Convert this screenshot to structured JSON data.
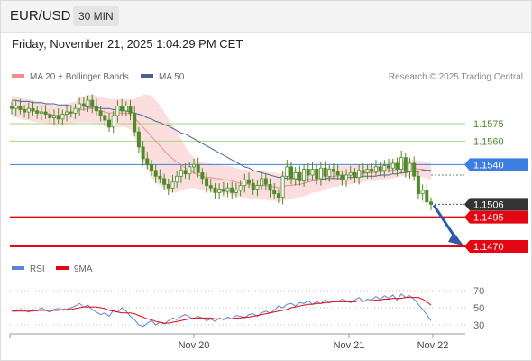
{
  "header": {
    "symbol": "EUR/USD",
    "timeframe": "30 MIN"
  },
  "datetime": "Friday, November 21, 2025 1:04:29 PM CET",
  "legend": {
    "bollinger_label": "MA 20 + Bollinger Bands",
    "ma50_label": "MA 50",
    "rsi_label": "RSI",
    "rsi_ma_label": "9MA"
  },
  "source_text": "Research © 2025 Trading Central",
  "colors": {
    "bollinger": "#f08c8c",
    "bollinger_band_fill": "#fcdede",
    "ma50": "#4a6490",
    "candle": "#4f8a2b",
    "resistance": "#a9d57f",
    "pivot": "#3d7fe0",
    "support": "#e30613",
    "price_tag": "#333333",
    "arrow": "#2e5aa8",
    "rsi": "#5a86d6",
    "rsi_ma": "#e30613"
  },
  "chart_data": [
    {
      "type": "candlestick",
      "title": "EUR/USD 30 MIN",
      "x_ticks": [
        "Nov 20",
        "Nov 21",
        "Nov 22"
      ],
      "price_levels": [
        {
          "label": "1.1575",
          "value": 1.1575,
          "kind": "resistance"
        },
        {
          "label": "1.1560",
          "value": 1.156,
          "kind": "resistance"
        },
        {
          "label": "1.1540",
          "value": 1.154,
          "kind": "pivot"
        },
        {
          "label": "1.1506",
          "value": 1.1506,
          "kind": "last"
        },
        {
          "label": "1.1495",
          "value": 1.1495,
          "kind": "support"
        },
        {
          "label": "1.1470",
          "value": 1.147,
          "kind": "support"
        }
      ],
      "ylim": [
        1.1453,
        1.1622
      ],
      "close": [
        1.1588,
        1.159,
        1.1587,
        1.1585,
        1.1588,
        1.1586,
        1.1584,
        1.1585,
        1.1583,
        1.158,
        1.1582,
        1.1579,
        1.1583,
        1.1585,
        1.1584,
        1.1588,
        1.1592,
        1.159,
        1.1595,
        1.159,
        1.1586,
        1.1582,
        1.1578,
        1.1572,
        1.1582,
        1.159,
        1.1586,
        1.159,
        1.1584,
        1.1568,
        1.1555,
        1.1545,
        1.154,
        1.1535,
        1.153,
        1.1528,
        1.1523,
        1.152,
        1.1525,
        1.153,
        1.1535,
        1.1532,
        1.1538,
        1.154,
        1.1533,
        1.1528,
        1.1522,
        1.152,
        1.1516,
        1.1519,
        1.1517,
        1.152,
        1.1516,
        1.1518,
        1.1522,
        1.1527,
        1.1524,
        1.1519,
        1.1522,
        1.1528,
        1.1523,
        1.1518,
        1.1515,
        1.1512,
        1.153,
        1.1538,
        1.1528,
        1.1533,
        1.1526,
        1.1536,
        1.1531,
        1.1536,
        1.1528,
        1.1537,
        1.153,
        1.1536,
        1.1534,
        1.1531,
        1.1527,
        1.1531,
        1.1533,
        1.1529,
        1.1535,
        1.1533,
        1.1536,
        1.1534,
        1.1538,
        1.1535,
        1.1539,
        1.1537,
        1.1541,
        1.1536,
        1.1546,
        1.1534,
        1.1541,
        1.153,
        1.1515,
        1.1518,
        1.1508,
        1.1506
      ],
      "ma20": [
        1.159,
        1.1589,
        1.1588,
        1.1587,
        1.1587,
        1.1586,
        1.1585,
        1.1585,
        1.1584,
        1.1583,
        1.1582,
        1.1582,
        1.1582,
        1.1583,
        1.1584,
        1.1585,
        1.1587,
        1.1587,
        1.1588,
        1.1588,
        1.1587,
        1.1586,
        1.1585,
        1.1584,
        1.1584,
        1.1584,
        1.1584,
        1.1584,
        1.1583,
        1.158,
        1.1576,
        1.1572,
        1.1568,
        1.1564,
        1.156,
        1.1556,
        1.1552,
        1.1548,
        1.1545,
        1.1542,
        1.154,
        1.1537,
        1.1535,
        1.1533,
        1.1531,
        1.153,
        1.1529,
        1.1529,
        1.1528,
        1.1528,
        1.1527,
        1.1527,
        1.1526,
        1.1525,
        1.1524,
        1.1524,
        1.1523,
        1.1522,
        1.1522,
        1.1522,
        1.1522,
        1.1521,
        1.1521,
        1.152,
        1.1521,
        1.1522,
        1.1522,
        1.1523,
        1.1523,
        1.1524,
        1.1525,
        1.1526,
        1.1526,
        1.1527,
        1.1528,
        1.1529,
        1.153,
        1.153,
        1.1531,
        1.1531,
        1.1531,
        1.1532,
        1.1532,
        1.1532,
        1.1533,
        1.1533,
        1.1533,
        1.1534,
        1.1534,
        1.1535,
        1.1535,
        1.1536,
        1.1537,
        1.1537,
        1.1537,
        1.1537,
        1.1536,
        1.1536,
        1.1535,
        1.1534
      ],
      "ma50": [
        1.1595,
        1.1595,
        1.1594,
        1.1594,
        1.1594,
        1.1593,
        1.1593,
        1.1593,
        1.1592,
        1.1592,
        1.1592,
        1.1591,
        1.1591,
        1.1591,
        1.159,
        1.159,
        1.159,
        1.159,
        1.1589,
        1.1589,
        1.1589,
        1.1588,
        1.1588,
        1.1588,
        1.1587,
        1.1587,
        1.1586,
        1.1586,
        1.1585,
        1.1584,
        1.1583,
        1.1582,
        1.158,
        1.1579,
        1.1577,
        1.1576,
        1.1574,
        1.1573,
        1.1571,
        1.1569,
        1.1567,
        1.1566,
        1.1564,
        1.1562,
        1.156,
        1.1558,
        1.1556,
        1.1554,
        1.1552,
        1.155,
        1.1548,
        1.1546,
        1.1544,
        1.1542,
        1.154,
        1.1538,
        1.1537,
        1.1535,
        1.1534,
        1.1533,
        1.1532,
        1.1531,
        1.153,
        1.1529,
        1.1529,
        1.1528,
        1.1528,
        1.1528,
        1.1527,
        1.1527,
        1.1527,
        1.1527,
        1.1527,
        1.1527,
        1.1528,
        1.1528,
        1.1528,
        1.1528,
        1.1528,
        1.1529,
        1.1529,
        1.1529,
        1.1529,
        1.153,
        1.153,
        1.153,
        1.153,
        1.1531,
        1.1531,
        1.1531,
        1.1532,
        1.1532,
        1.1533,
        1.1533,
        1.1534,
        1.1534,
        1.1534,
        1.1535,
        1.1535,
        1.1535
      ],
      "bb_width": [
        0.0009,
        0.0009,
        0.0009,
        0.0009,
        0.0009,
        0.0009,
        0.0009,
        0.0009,
        0.0009,
        0.0009,
        0.0009,
        0.0009,
        0.0009,
        0.0009,
        0.0009,
        0.0009,
        0.0011,
        0.0011,
        0.0012,
        0.0012,
        0.0012,
        0.0012,
        0.0012,
        0.0012,
        0.0012,
        0.0012,
        0.0012,
        0.0012,
        0.0013,
        0.0016,
        0.0022,
        0.0028,
        0.0032,
        0.0035,
        0.0035,
        0.0034,
        0.0033,
        0.0031,
        0.0029,
        0.0026,
        0.0022,
        0.0018,
        0.0015,
        0.0013,
        0.0012,
        0.0012,
        0.0012,
        0.0012,
        0.0012,
        0.0012,
        0.0012,
        0.0012,
        0.0012,
        0.0012,
        0.0012,
        0.0012,
        0.0012,
        0.0012,
        0.0012,
        0.0012,
        0.0012,
        0.0012,
        0.0012,
        0.0012,
        0.0012,
        0.0012,
        0.0012,
        0.0011,
        0.0011,
        0.0011,
        0.0011,
        0.001,
        0.001,
        0.001,
        0.0009,
        0.0009,
        0.0009,
        0.0009,
        0.0008,
        0.0008,
        0.0008,
        0.0008,
        0.0008,
        0.0007,
        0.0007,
        0.0007,
        0.0007,
        0.0007,
        0.0007,
        0.0007,
        0.0007,
        0.0007,
        0.0007,
        0.0007,
        0.0007,
        0.0007,
        0.0007,
        0.0007,
        0.0007,
        0.0007
      ],
      "projection": {
        "from": 1.1496,
        "to": 1.147
      }
    },
    {
      "type": "line",
      "title": "RSI",
      "y_ticks": [
        70,
        50,
        30
      ],
      "ylim": [
        20,
        80
      ],
      "rsi": [
        47,
        46,
        48,
        47,
        45,
        48,
        46,
        50,
        47,
        45,
        48,
        49,
        47,
        48,
        50,
        52,
        55,
        51,
        53,
        48,
        45,
        42,
        44,
        40,
        47,
        45,
        50,
        46,
        40,
        36,
        30,
        28,
        32,
        35,
        30,
        33,
        31,
        35,
        38,
        36,
        40,
        42,
        39,
        37,
        40,
        38,
        35,
        37,
        34,
        38,
        36,
        39,
        37,
        41,
        40,
        38,
        42,
        43,
        40,
        44,
        46,
        44,
        47,
        52,
        50,
        54,
        55,
        52,
        56,
        55,
        58,
        54,
        57,
        55,
        59,
        56,
        58,
        57,
        60,
        58,
        56,
        59,
        62,
        57,
        60,
        59,
        63,
        60,
        64,
        61,
        65,
        59,
        66,
        62,
        64,
        60,
        54,
        48,
        42,
        35
      ],
      "ma9": [
        46,
        46,
        46,
        46,
        46,
        46,
        47,
        47,
        47,
        47,
        47,
        47,
        48,
        48,
        48,
        49,
        50,
        51,
        51,
        51,
        51,
        50,
        49,
        47,
        46,
        45,
        44,
        44,
        44,
        43,
        41,
        39,
        37,
        36,
        34,
        33,
        32,
        32,
        33,
        34,
        35,
        36,
        37,
        38,
        38,
        38,
        38,
        38,
        37,
        37,
        37,
        37,
        37,
        38,
        38,
        39,
        39,
        40,
        41,
        42,
        43,
        44,
        45,
        46,
        47,
        48,
        50,
        51,
        52,
        53,
        54,
        54,
        55,
        55,
        56,
        56,
        57,
        57,
        57,
        57,
        57,
        57,
        58,
        58,
        58,
        58,
        59,
        59,
        60,
        60,
        61,
        61,
        61,
        62,
        62,
        62,
        62,
        60,
        57,
        53
      ]
    }
  ]
}
